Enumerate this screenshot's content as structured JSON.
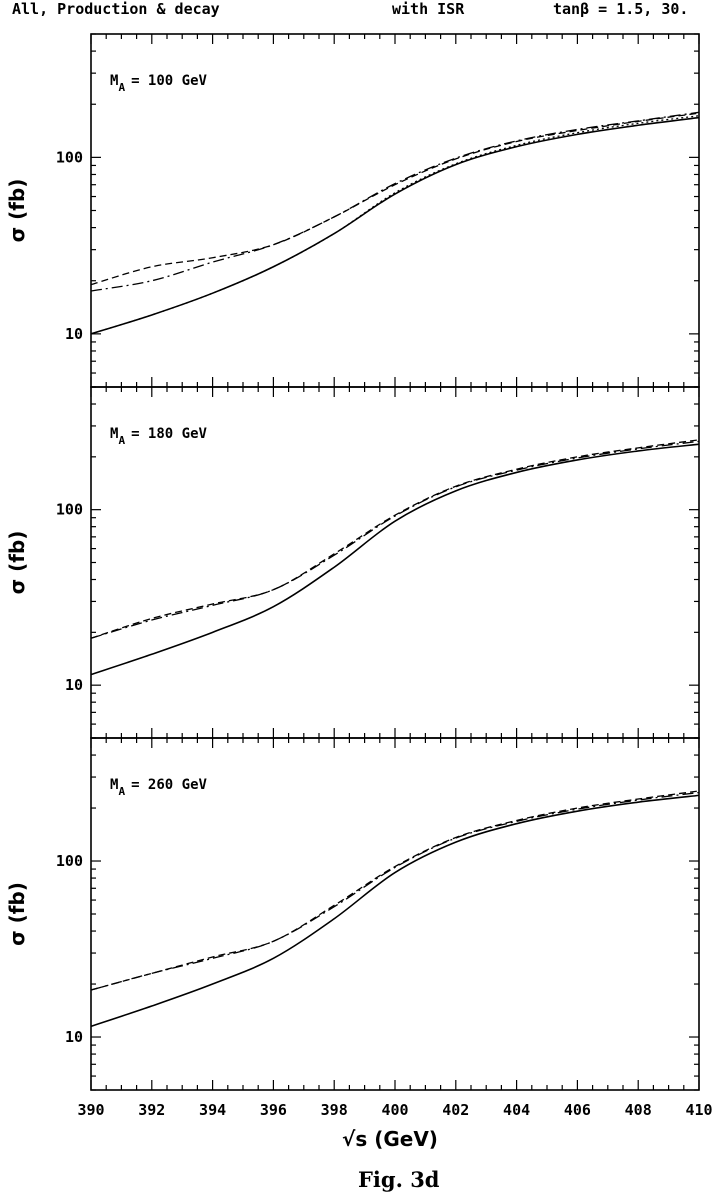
{
  "header": {
    "left": "All, Production & decay",
    "center": "with ISR",
    "right": "tanβ = 1.5, 30."
  },
  "caption": "Fig. 3d",
  "chart_data": {
    "type": "line",
    "xlabel": "√s (GeV)",
    "ylabel": "σ (fb)",
    "xlim": [
      390,
      410
    ],
    "ylim": [
      5,
      500
    ],
    "yscale": "log",
    "xticks": [
      390,
      392,
      394,
      396,
      398,
      400,
      402,
      404,
      406,
      408,
      410
    ],
    "yticks": [
      10,
      100
    ],
    "x": [
      390,
      392,
      394,
      396,
      398,
      400,
      402,
      404,
      406,
      408,
      410
    ],
    "panels": [
      {
        "label": "M",
        "label_sub": "A",
        "label_rest": "= 100 GeV",
        "series": [
          {
            "style": "solid",
            "color": "#000000",
            "values": [
              10,
              12.8,
              17,
              24,
              37,
              62,
              91,
              115,
              135,
              152,
              168
            ]
          },
          {
            "style": "dotted",
            "color": "#000000",
            "values": [
              10,
              12.8,
              17,
              24,
              37,
              63,
              92,
              117,
              138,
              156,
              172
            ]
          },
          {
            "style": "dashed",
            "color": "#000000",
            "values": [
              19,
              24,
              27,
              32,
              46,
              70,
              98,
              123,
              142,
              160,
              178
            ]
          },
          {
            "style": "dashdot",
            "color": "#000000",
            "values": [
              17.5,
              20,
              25.5,
              32,
              46,
              71,
              99,
              124,
              144,
              161,
              180
            ]
          }
        ]
      },
      {
        "label": "M",
        "label_sub": "A",
        "label_rest": "= 180 GeV",
        "series": [
          {
            "style": "solid",
            "color": "#000000",
            "values": [
              11.5,
              15,
              20,
              28,
              47,
              86,
              128,
              163,
              192,
              216,
              236
            ]
          },
          {
            "style": "dashed",
            "color": "#000000",
            "values": [
              18.5,
              24,
              29,
              35,
              56,
              93,
              136,
              170,
              200,
              225,
              250
            ]
          },
          {
            "style": "dashdot",
            "color": "#000000",
            "values": [
              18.5,
              23.5,
              28.5,
              35,
              55,
              92,
              135,
              168,
              197,
              222,
              245
            ]
          }
        ]
      },
      {
        "label": "M",
        "label_sub": "A",
        "label_rest": "= 260 GeV",
        "series": [
          {
            "style": "solid",
            "color": "#000000",
            "values": [
              11.5,
              15,
              20,
              28,
              47,
              86,
              128,
              163,
              192,
              216,
              236
            ]
          },
          {
            "style": "dashed",
            "color": "#000000",
            "values": [
              18.5,
              23,
              28.5,
              35,
              56,
              93,
              136,
              170,
              200,
              225,
              250
            ]
          },
          {
            "style": "dashdot",
            "color": "#000000",
            "values": [
              18.5,
              23,
              28,
              35,
              55,
              92,
              135,
              168,
              197,
              222,
              245
            ]
          }
        ]
      }
    ]
  }
}
